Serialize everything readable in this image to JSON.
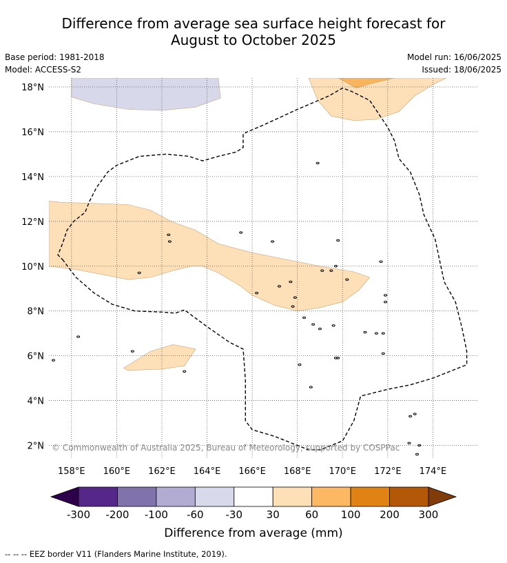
{
  "title": {
    "line1": "Difference from average sea surface height forecast for",
    "line2": "August to October 2025"
  },
  "meta": {
    "base_period": "Base period: 1981-2018",
    "model": "Model: ACCESS-S2",
    "model_run": "Model run: 16/06/2025",
    "issued": "Issued: 18/06/2025"
  },
  "map": {
    "lon_range": [
      157,
      176
    ],
    "lat_range": [
      1.4,
      18.4
    ],
    "lat_labels": [
      {
        "value": 18,
        "label": "18°N"
      },
      {
        "value": 16,
        "label": "16°N"
      },
      {
        "value": 14,
        "label": "14°N"
      },
      {
        "value": 12,
        "label": "12°N"
      },
      {
        "value": 10,
        "label": "10°N"
      },
      {
        "value": 8,
        "label": "8°N"
      },
      {
        "value": 6,
        "label": "6°N"
      },
      {
        "value": 4,
        "label": "4°N"
      },
      {
        "value": 2,
        "label": "2°N"
      }
    ],
    "lon_labels": [
      {
        "value": 158,
        "label": "158°E"
      },
      {
        "value": 160,
        "label": "160°E"
      },
      {
        "value": 162,
        "label": "162°E"
      },
      {
        "value": 164,
        "label": "164°E"
      },
      {
        "value": 166,
        "label": "166°E"
      },
      {
        "value": 168,
        "label": "168°E"
      },
      {
        "value": 170,
        "label": "170°E"
      },
      {
        "value": 172,
        "label": "172°E"
      },
      {
        "value": 174,
        "label": "174°E"
      }
    ],
    "copyright": "© Commonwealth of Australia 2025, Bureau of Meteorology, supported by COSPPac",
    "regions": [
      {
        "name": "band-30-60-west",
        "color": "#fde0b8",
        "coords": [
          [
            157,
            12.9
          ],
          [
            157.5,
            12.85
          ],
          [
            159,
            12.8
          ],
          [
            160.5,
            12.75
          ],
          [
            161.5,
            12.5
          ],
          [
            162.4,
            12.0
          ],
          [
            163.5,
            11.6
          ],
          [
            164.5,
            11.0
          ],
          [
            166,
            10.6
          ],
          [
            167.5,
            10.3
          ],
          [
            169,
            10.0
          ],
          [
            170.5,
            9.75
          ],
          [
            171.2,
            9.5
          ],
          [
            170.7,
            8.9
          ],
          [
            170,
            8.4
          ],
          [
            169,
            8.15
          ],
          [
            168,
            8.0
          ],
          [
            167,
            8.25
          ],
          [
            166,
            8.7
          ],
          [
            165.5,
            9.1
          ],
          [
            164.5,
            9.7
          ],
          [
            163.8,
            10.0
          ],
          [
            163.3,
            10.0
          ],
          [
            162.5,
            9.8
          ],
          [
            161.5,
            9.5
          ],
          [
            160.5,
            9.4
          ],
          [
            159.5,
            9.6
          ],
          [
            158.2,
            9.85
          ],
          [
            157,
            10.0
          ]
        ]
      },
      {
        "name": "patch-30-60-south",
        "color": "#fde0b8",
        "coords": [
          [
            160.3,
            5.45
          ],
          [
            161.5,
            6.2
          ],
          [
            162.5,
            6.5
          ],
          [
            163.5,
            6.3
          ],
          [
            163,
            5.55
          ],
          [
            162,
            5.4
          ],
          [
            160.5,
            5.35
          ]
        ]
      },
      {
        "name": "patch-30-60-north",
        "color": "#fde0b8",
        "coords": [
          [
            168.5,
            18.4
          ],
          [
            168.9,
            17.4
          ],
          [
            169.5,
            16.7
          ],
          [
            170.5,
            16.5
          ],
          [
            171.5,
            16.55
          ],
          [
            172.5,
            16.9
          ],
          [
            173.2,
            17.6
          ],
          [
            174,
            18.1
          ],
          [
            174.6,
            18.4
          ]
        ]
      },
      {
        "name": "patch-60-100-north",
        "color": "#f8b55e",
        "coords": [
          [
            169.8,
            18.4
          ],
          [
            170.6,
            17.95
          ],
          [
            171.3,
            18.15
          ],
          [
            172.3,
            18.4
          ]
        ]
      },
      {
        "name": "patch-minus-60-minus-30-north",
        "color": "#d8d8eb",
        "coords": [
          [
            158,
            18.4
          ],
          [
            158,
            17.55
          ],
          [
            159,
            17.25
          ],
          [
            160.5,
            17.0
          ],
          [
            162,
            16.95
          ],
          [
            163.5,
            17.1
          ],
          [
            164.6,
            17.5
          ],
          [
            164.5,
            18.4
          ]
        ]
      }
    ],
    "eez_border": [
      [
        157.6,
        10.3
      ],
      [
        158.2,
        9.5
      ],
      [
        159,
        8.8
      ],
      [
        159.8,
        8.3
      ],
      [
        160.8,
        8.0
      ],
      [
        162,
        7.95
      ],
      [
        162.6,
        7.9
      ],
      [
        163,
        8.05
      ],
      [
        164,
        7.3
      ],
      [
        165,
        6.6
      ],
      [
        165.6,
        6.3
      ],
      [
        165.7,
        4.9
      ],
      [
        165.7,
        3.1
      ],
      [
        166,
        2.7
      ],
      [
        167,
        2.4
      ],
      [
        168,
        2.0
      ],
      [
        168.5,
        1.8
      ],
      [
        169,
        1.8
      ],
      [
        170,
        2.2
      ],
      [
        170.5,
        3.1
      ],
      [
        170.8,
        4.2
      ],
      [
        172,
        4.5
      ],
      [
        173,
        4.7
      ],
      [
        174,
        5.0
      ],
      [
        175,
        5.4
      ],
      [
        175.5,
        5.6
      ],
      [
        175.5,
        6.2
      ],
      [
        175.3,
        7.2
      ],
      [
        175,
        8.4
      ],
      [
        174.5,
        9.3
      ],
      [
        174.1,
        11.2
      ],
      [
        173.6,
        12.3
      ],
      [
        173.4,
        13.2
      ],
      [
        173,
        14.2
      ],
      [
        172.5,
        14.8
      ],
      [
        172.3,
        15.6
      ],
      [
        172,
        16.2
      ],
      [
        171.2,
        17.4
      ],
      [
        170.4,
        17.8
      ],
      [
        170,
        17.95
      ],
      [
        169.4,
        17.6
      ],
      [
        168,
        17.0
      ],
      [
        166.5,
        16.3
      ],
      [
        165.8,
        16.0
      ],
      [
        165.6,
        15.9
      ],
      [
        165.6,
        15.3
      ],
      [
        165.3,
        15.1
      ],
      [
        164.5,
        14.9
      ],
      [
        163.8,
        14.7
      ],
      [
        163.2,
        14.9
      ],
      [
        162.2,
        15.0
      ],
      [
        161,
        14.9
      ],
      [
        160,
        14.5
      ],
      [
        159.6,
        14.2
      ],
      [
        159.1,
        13.5
      ],
      [
        158.8,
        12.9
      ],
      [
        158.6,
        12.4
      ],
      [
        158.1,
        12.0
      ],
      [
        157.8,
        11.6
      ],
      [
        157.6,
        11.0
      ],
      [
        157.4,
        10.5
      ]
    ],
    "islands": [
      [
        158.3,
        6.85
      ],
      [
        162.3,
        11.4
      ],
      [
        162.35,
        11.1
      ],
      [
        161.0,
        9.7
      ],
      [
        165.5,
        11.5
      ],
      [
        166.9,
        11.1
      ],
      [
        169.8,
        11.15
      ],
      [
        171.7,
        10.2
      ],
      [
        169.7,
        10.0
      ],
      [
        169.5,
        9.8
      ],
      [
        169.1,
        9.8
      ],
      [
        170.2,
        9.4
      ],
      [
        167.7,
        9.3
      ],
      [
        167.2,
        9.1
      ],
      [
        166.2,
        8.8
      ],
      [
        167.9,
        8.6
      ],
      [
        171.9,
        8.4
      ],
      [
        171.9,
        8.7
      ],
      [
        167.8,
        8.2
      ],
      [
        168.3,
        7.7
      ],
      [
        168.7,
        7.4
      ],
      [
        169,
        7.2
      ],
      [
        169.6,
        7.35
      ],
      [
        171.0,
        7.05
      ],
      [
        171.5,
        7.0
      ],
      [
        171.8,
        7.0
      ],
      [
        171.8,
        6.1
      ],
      [
        169.7,
        5.9
      ],
      [
        169.8,
        5.9
      ],
      [
        168.1,
        5.6
      ],
      [
        168.6,
        4.6
      ],
      [
        157.2,
        5.8
      ],
      [
        163,
        5.3
      ],
      [
        160.7,
        6.2
      ],
      [
        168.9,
        14.6
      ],
      [
        173,
        3.3
      ],
      [
        173.2,
        3.4
      ],
      [
        172.95,
        2.1
      ],
      [
        173.3,
        1.6
      ],
      [
        173.4,
        2.0
      ]
    ]
  },
  "colorbar": {
    "title": "Difference from average (mm)",
    "colors": [
      "#2d004b",
      "#542788",
      "#8073ac",
      "#b2abd2",
      "#d8daeb",
      "#ffffff",
      "#fee0b6",
      "#fdb863",
      "#e08214",
      "#b35806",
      "#7f3b08"
    ],
    "ticks": [
      "-300",
      "-200",
      "-100",
      "-60",
      "-30",
      "30",
      "60",
      "100",
      "200",
      "300"
    ]
  },
  "legend": {
    "eez_label": "--  --  -- EEZ border V11 (Flanders Marine Institute, 2019)."
  }
}
